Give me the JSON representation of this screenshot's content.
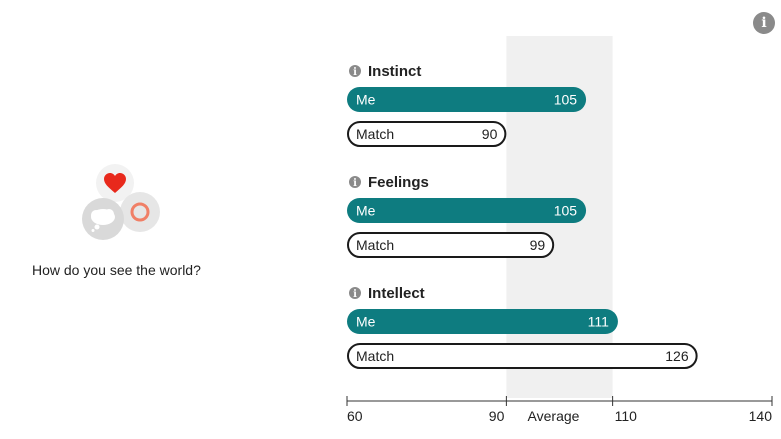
{
  "question": "How do you see the world?",
  "colors": {
    "me_bar": "#0e7c80",
    "match_outline": "#1a1a1a",
    "average_band": "#f0f0f0",
    "info_icon": "#8a8a8a",
    "heart": "#e8291c",
    "ring": "#f07f66"
  },
  "icons": [
    "info-icon",
    "heart-icon",
    "ring-icon",
    "thought-bubble-icon"
  ],
  "chart_data": {
    "type": "bar",
    "orientation": "horizontal",
    "categories": [
      "Instinct",
      "Feelings",
      "Intellect"
    ],
    "series": [
      {
        "name": "Me",
        "values": [
          105,
          105,
          111
        ]
      },
      {
        "name": "Match",
        "values": [
          90,
          99,
          126
        ]
      }
    ],
    "xlim": [
      60,
      140
    ],
    "ticks": [
      {
        "value": 60,
        "label": "60"
      },
      {
        "value": 90,
        "label": "90"
      },
      {
        "value": 110,
        "label": "110"
      },
      {
        "value": 140,
        "label": "140"
      }
    ],
    "average_band": {
      "from": 90,
      "to": 110,
      "label": "Average"
    }
  }
}
